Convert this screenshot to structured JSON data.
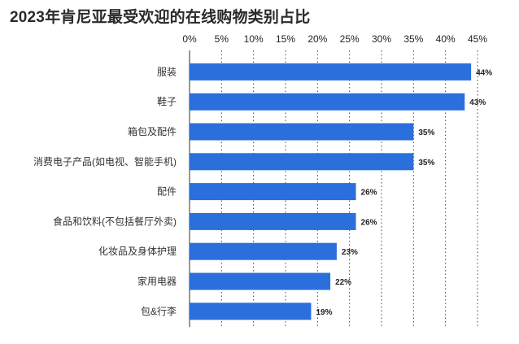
{
  "chart_data": {
    "type": "bar",
    "orientation": "horizontal",
    "title": "2023年肯尼亚最受欢迎的在线购物类别占比",
    "categories": [
      "服装",
      "鞋子",
      "箱包及配件",
      "消费电子产品(如电视、智能手机)",
      "配件",
      "食品和饮料(不包括餐厅外卖)",
      "化妆品及身体护理",
      "家用电器",
      "包&行李"
    ],
    "values": [
      44,
      43,
      35,
      35,
      26,
      26,
      23,
      22,
      19
    ],
    "value_labels": [
      "44%",
      "43%",
      "35%",
      "35%",
      "26%",
      "26%",
      "23%",
      "22%",
      "19%"
    ],
    "x_ticks": [
      0,
      5,
      10,
      15,
      20,
      25,
      30,
      35,
      40,
      45
    ],
    "x_tick_labels": [
      "0%",
      "5%",
      "10%",
      "15%",
      "20%",
      "25%",
      "30%",
      "35%",
      "40%",
      "45%"
    ],
    "xlim": [
      0,
      45
    ],
    "x_axis_position": "top",
    "grid": "vertical dotted",
    "bar_color": "#2a6fdb"
  }
}
